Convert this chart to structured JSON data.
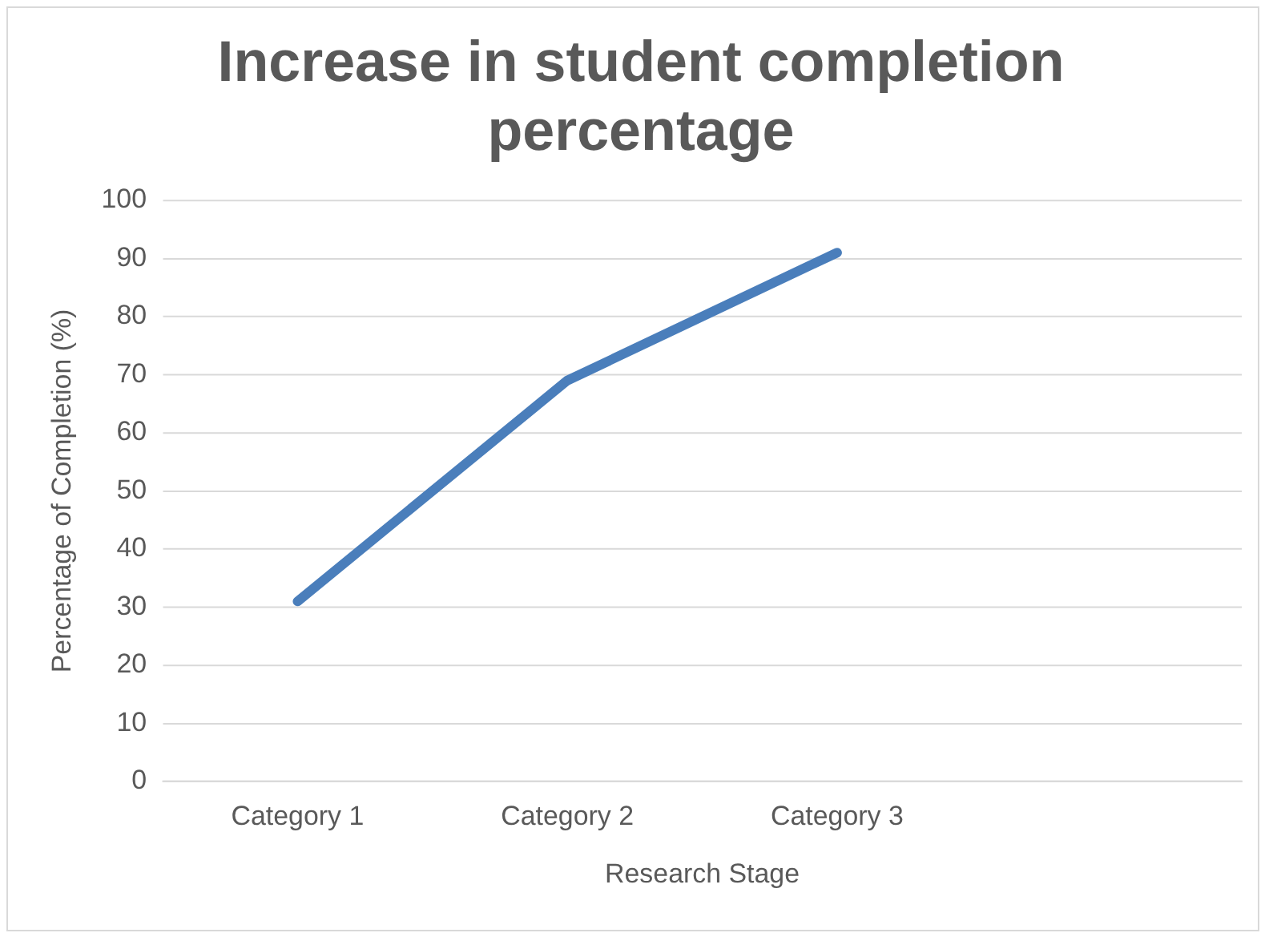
{
  "chart_data": {
    "type": "line",
    "title": "Increase in student completion percentage",
    "xlabel": "Research Stage",
    "ylabel": "Percentage of Completion (%)",
    "categories": [
      "Category 1",
      "Category 2",
      "Category 3",
      null
    ],
    "series": [
      {
        "color": "#4a7ebb",
        "values": [
          31,
          69,
          91,
          null
        ]
      }
    ],
    "ylim": [
      0,
      100
    ],
    "yticks": [
      0,
      10,
      20,
      30,
      40,
      50,
      60,
      70,
      80,
      90,
      100
    ],
    "grid": "y",
    "legend": false,
    "marker": "none",
    "line_style": "solid"
  }
}
